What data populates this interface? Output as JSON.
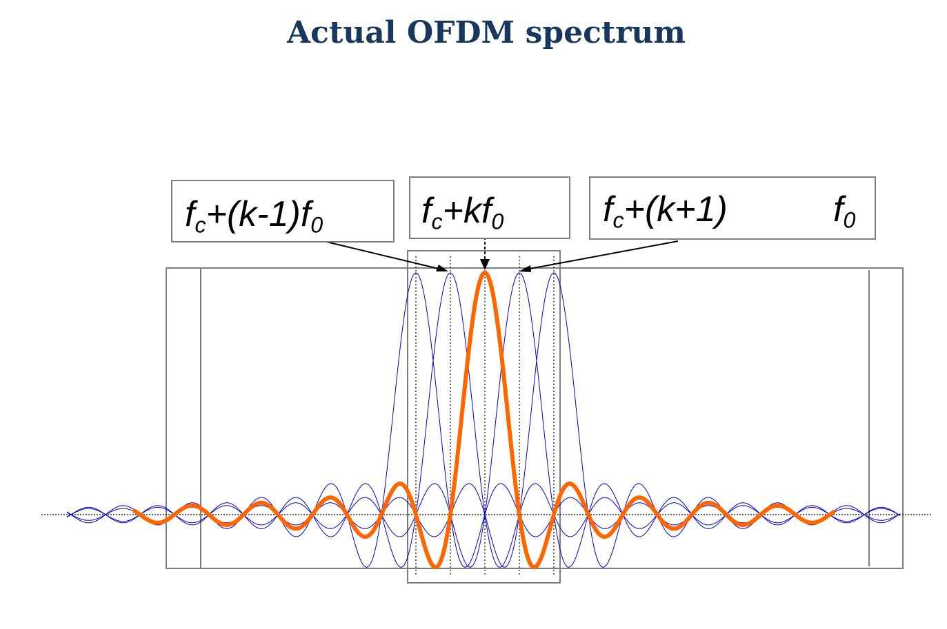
{
  "title": "Actual OFDM spectrum",
  "labels": {
    "prev": {
      "f": "f",
      "sub": "c",
      "op": "+",
      "term": "(k-1)f",
      "term_sub": "0"
    },
    "curr": {
      "f": "f",
      "sub": "c",
      "op": "+",
      "term": "kf",
      "term_sub": "0"
    },
    "next": {
      "f": "f",
      "sub": "c",
      "op": "+",
      "term": "(k+1)",
      "f0": "f",
      "f0_sub": "0"
    }
  },
  "colors": {
    "title": "#17375e",
    "highlight_subcarrier": "#ff6600",
    "other_subcarriers": "#0000cc",
    "frame": "#7f7f7f"
  },
  "chart_data": {
    "type": "line",
    "x_unit": "subcarrier spacing f0",
    "highlighted_center": 0,
    "subcarrier_centers": [
      -2,
      -1,
      0,
      1,
      2
    ],
    "curve": "sinc"
  }
}
